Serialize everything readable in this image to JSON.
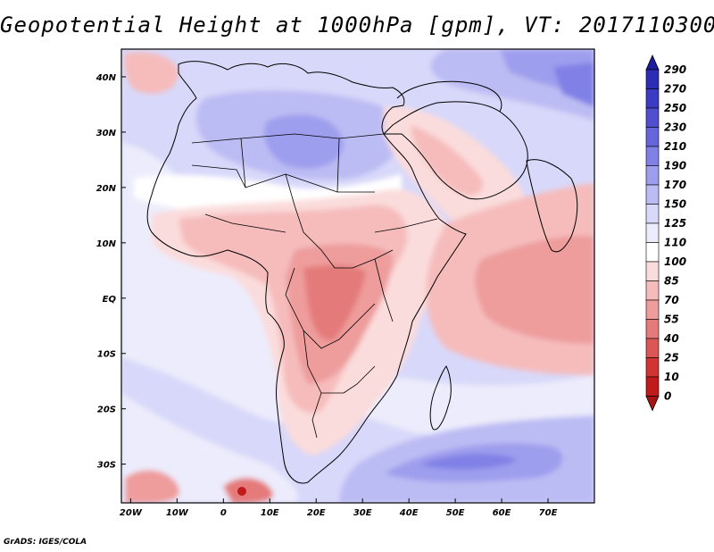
{
  "title": "Geopotential Height at 1000hPa [gpm], VT: 2017110300",
  "footer": "GrADS: IGES/COLA",
  "lat_ticks": [
    "40N",
    "30N",
    "20N",
    "10N",
    "EQ",
    "10S",
    "20S",
    "30S"
  ],
  "lon_ticks": [
    "20W",
    "10W",
    "0",
    "10E",
    "20E",
    "30E",
    "40E",
    "50E",
    "60E",
    "70E"
  ],
  "colorbar": {
    "labels": [
      "290",
      "270",
      "250",
      "230",
      "210",
      "190",
      "170",
      "150",
      "125",
      "110",
      "100",
      "85",
      "70",
      "55",
      "40",
      "25",
      "10",
      "0"
    ],
    "colors": [
      "#1c1c9e",
      "#2c2cb4",
      "#3b3bc4",
      "#4f4fd0",
      "#6666dc",
      "#8080e6",
      "#9e9eee",
      "#bcbcf4",
      "#d8d8fa",
      "#ececfc",
      "#ffffff",
      "#fbdcdc",
      "#f6bcbc",
      "#ee9c9c",
      "#e47a7a",
      "#dc5656",
      "#d23434",
      "#c01a1a",
      "#a81414"
    ]
  },
  "map": {
    "lon_range": [
      -22,
      80
    ],
    "lat_range": [
      -37,
      45
    ]
  }
}
